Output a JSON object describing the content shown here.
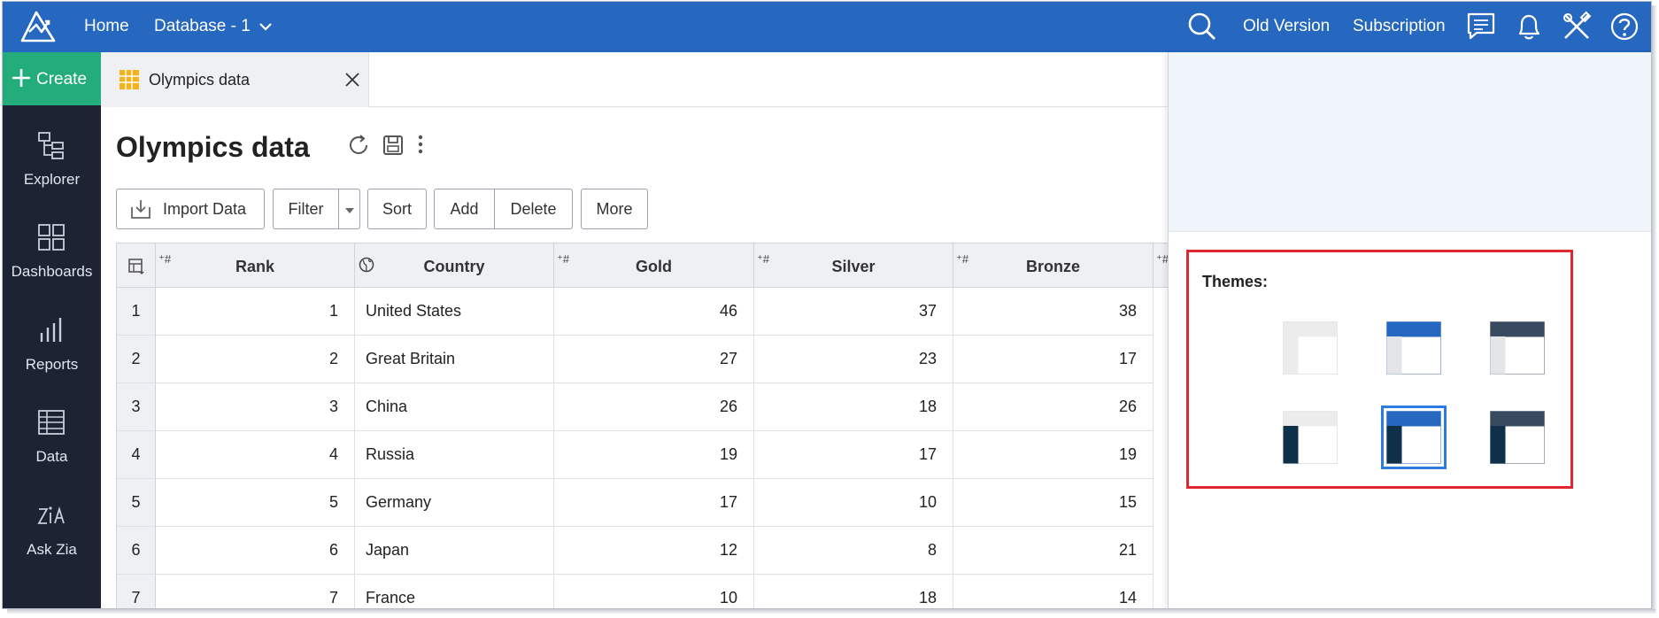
{
  "topbar": {
    "home": "Home",
    "database": "Database - 1",
    "old_version": "Old Version",
    "subscription": "Subscription",
    "brand_color": "#2667c0"
  },
  "sidebar": {
    "create": "Create",
    "items": [
      {
        "label": "Explorer",
        "icon": "explorer-icon"
      },
      {
        "label": "Dashboards",
        "icon": "dashboards-icon"
      },
      {
        "label": "Reports",
        "icon": "reports-icon"
      },
      {
        "label": "Data",
        "icon": "data-icon"
      },
      {
        "label": "Ask Zia",
        "icon": "zia-icon"
      }
    ]
  },
  "tab": {
    "title": "Olympics data"
  },
  "page": {
    "title": "Olympics data"
  },
  "toolbar": {
    "import": "Import Data",
    "filter": "Filter",
    "sort": "Sort",
    "add": "Add",
    "delete": "Delete",
    "more": "More"
  },
  "table": {
    "columns": [
      "Rank",
      "Country",
      "Gold",
      "Silver",
      "Bronze"
    ],
    "rows": [
      {
        "n": "1",
        "rank": "1",
        "country": "United States",
        "gold": "46",
        "silver": "37",
        "bronze": "38"
      },
      {
        "n": "2",
        "rank": "2",
        "country": "Great Britain",
        "gold": "27",
        "silver": "23",
        "bronze": "17"
      },
      {
        "n": "3",
        "rank": "3",
        "country": "China",
        "gold": "26",
        "silver": "18",
        "bronze": "26"
      },
      {
        "n": "4",
        "rank": "4",
        "country": "Russia",
        "gold": "19",
        "silver": "17",
        "bronze": "19"
      },
      {
        "n": "5",
        "rank": "5",
        "country": "Germany",
        "gold": "17",
        "silver": "10",
        "bronze": "15"
      },
      {
        "n": "6",
        "rank": "6",
        "country": "Japan",
        "gold": "12",
        "silver": "8",
        "bronze": "21"
      },
      {
        "n": "7",
        "rank": "7",
        "country": "France",
        "gold": "10",
        "silver": "18",
        "bronze": "14"
      }
    ]
  },
  "themes": {
    "label": "Themes:",
    "highlight_color": "#e0262f",
    "selected_index": 4
  }
}
